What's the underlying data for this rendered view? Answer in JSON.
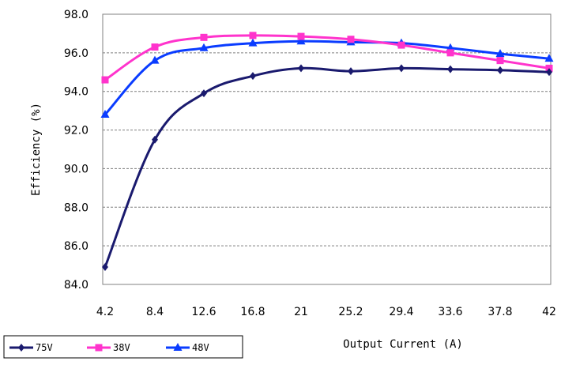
{
  "chart_data": {
    "type": "line",
    "x": [
      "4.2",
      "8.4",
      "12.6",
      "16.8",
      "21",
      "25.2",
      "29.4",
      "33.6",
      "37.8",
      "42"
    ],
    "ylabel": "Efficiency (%)",
    "xlabel": "Output Current (A)",
    "ylim": [
      84.0,
      98.0
    ],
    "ytick_labels": [
      "84.0",
      "86.0",
      "88.0",
      "90.0",
      "92.0",
      "94.0",
      "96.0",
      "98.0"
    ],
    "grid": "horizontal dashed",
    "legend_position": "bottom-left",
    "series": [
      {
        "name": "75V",
        "color": "#1a1a6e",
        "marker": "diamond",
        "values": [
          84.9,
          91.5,
          93.9,
          94.8,
          95.2,
          95.05,
          95.2,
          95.15,
          95.1,
          95.0
        ]
      },
      {
        "name": "38V",
        "color": "#ff33cc",
        "marker": "square",
        "values": [
          94.6,
          96.3,
          96.8,
          96.9,
          96.85,
          96.7,
          96.4,
          96.0,
          95.6,
          95.2
        ]
      },
      {
        "name": "48V",
        "color": "#0a3cff",
        "marker": "triangle",
        "values": [
          92.8,
          95.6,
          96.25,
          96.5,
          96.6,
          96.55,
          96.5,
          96.25,
          95.95,
          95.7
        ]
      }
    ]
  }
}
